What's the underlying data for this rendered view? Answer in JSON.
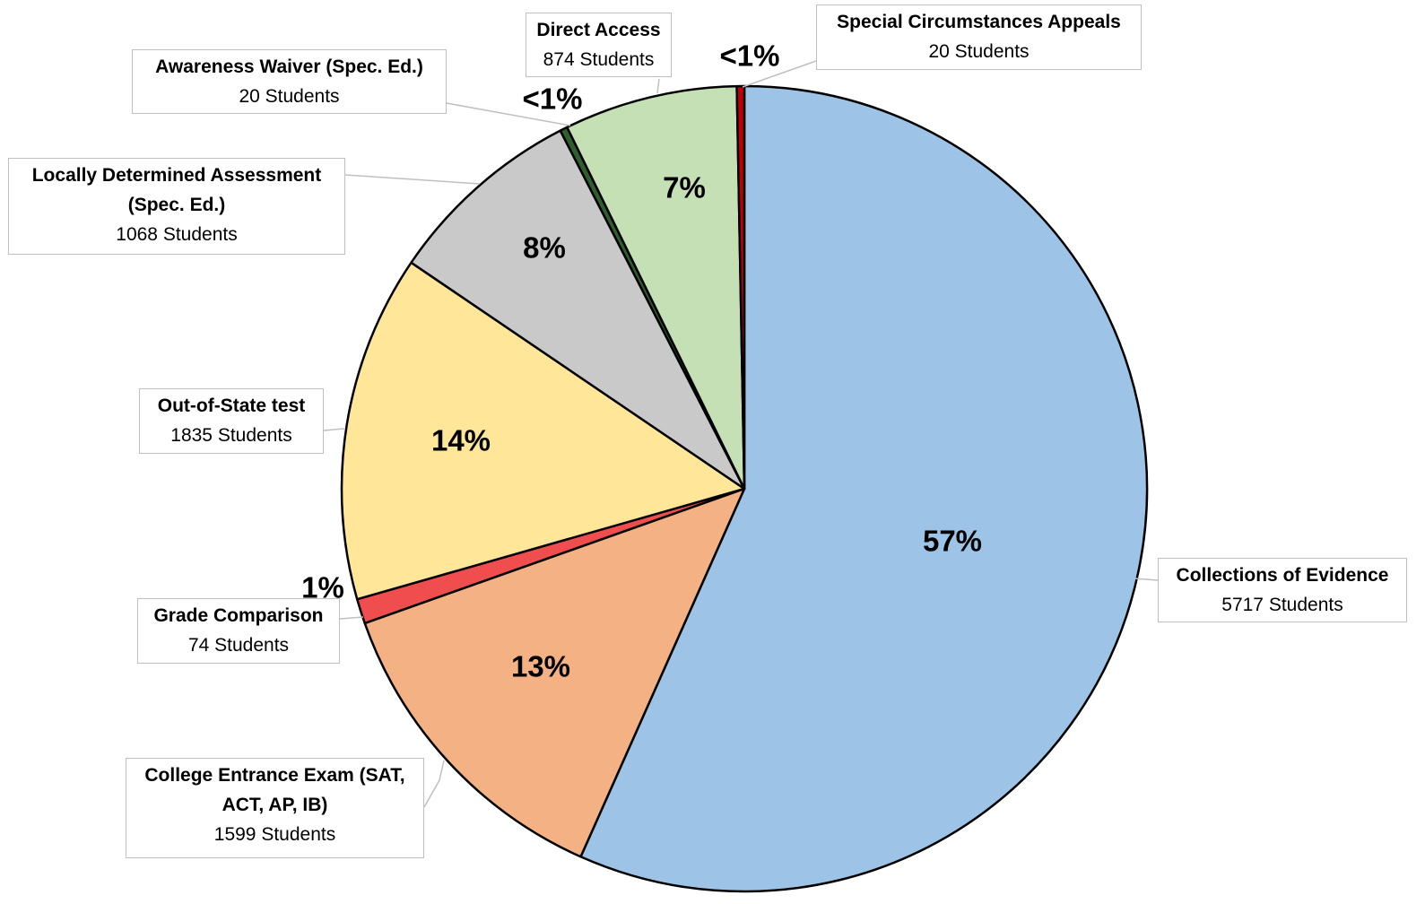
{
  "chart_data": {
    "type": "pie",
    "categories": [
      "Collections of Evidence",
      "College Entrance Exam (SAT, ACT, AP, IB)",
      "Grade Comparison",
      "Out-of-State test",
      "Locally Determined Assessment (Spec. Ed.)",
      "Awareness Waiver (Spec. Ed.)",
      "Direct Access",
      "Special Circumstances Appeals"
    ],
    "values": [
      57,
      13,
      1,
      14,
      8,
      0.3,
      7,
      0.3
    ],
    "value_labels": [
      "57%",
      "13%",
      "1%",
      "14%",
      "8%",
      "<1%",
      "7%",
      "<1%"
    ],
    "students": [
      "5717 Students",
      "1599 Students",
      "74 Students",
      "1835 Students",
      "1068 Students",
      "20 Students",
      "874 Students",
      "20 Students"
    ],
    "colors": [
      "#9dc3e6",
      "#f4b183",
      "#f04e4e",
      "#ffe699",
      "#c9c9c9",
      "#2f5f2f",
      "#c5e0b4",
      "#c00000"
    ]
  }
}
